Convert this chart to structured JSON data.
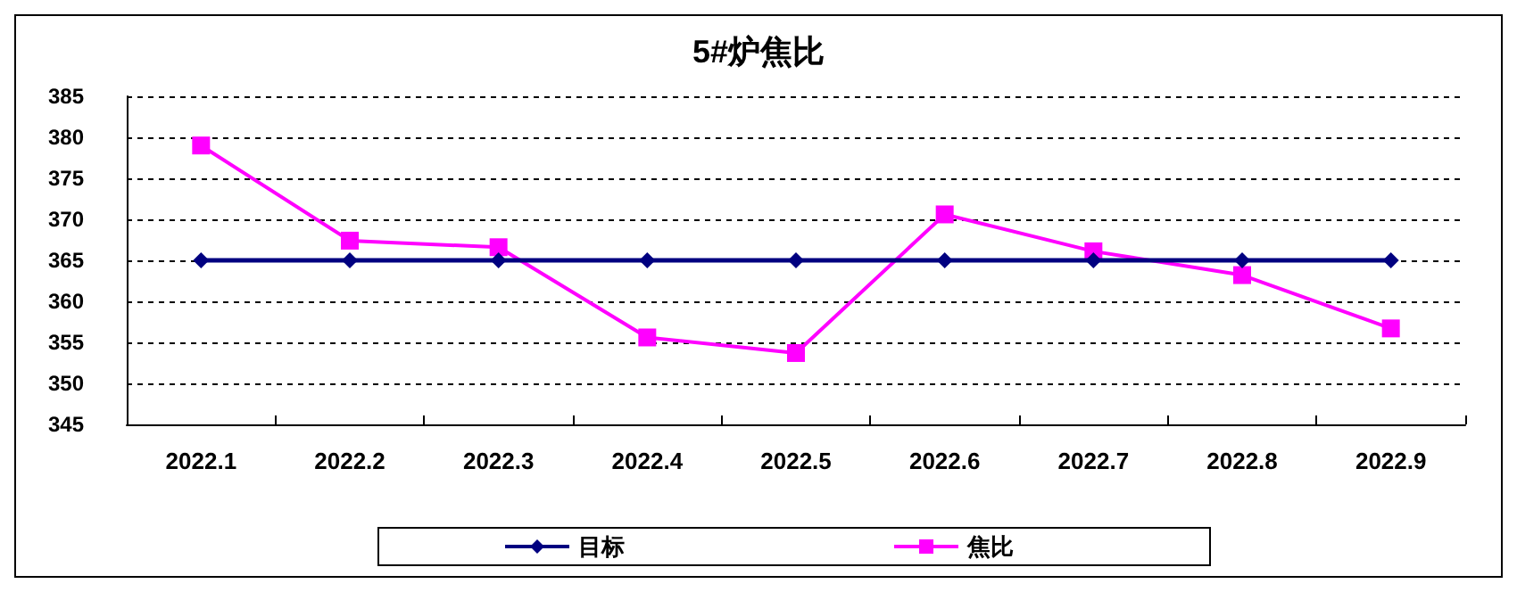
{
  "chart_data": {
    "type": "line",
    "title": "5#炉焦比",
    "categories": [
      "2022.1",
      "2022.2",
      "2022.3",
      "2022.4",
      "2022.5",
      "2022.6",
      "2022.7",
      "2022.8",
      "2022.9"
    ],
    "series": [
      {
        "name": "目标",
        "color": "#000080",
        "marker": "diamond",
        "values": [
          365,
          365,
          365,
          365,
          365,
          365,
          365,
          365,
          365
        ]
      },
      {
        "name": "焦比",
        "color": "#ff00ff",
        "marker": "square",
        "values": [
          379.0,
          367.4,
          366.6,
          355.6,
          353.7,
          370.6,
          366.1,
          363.2,
          356.7
        ]
      }
    ],
    "ylim": [
      345,
      385
    ],
    "yticks": [
      345,
      350,
      355,
      360,
      365,
      370,
      375,
      380,
      385
    ],
    "grid": "y",
    "legend": "bottom",
    "line_style": "solid"
  }
}
